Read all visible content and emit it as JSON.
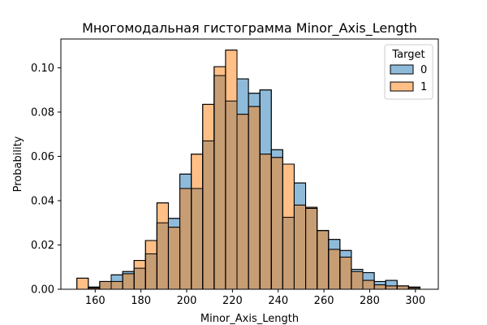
{
  "chart_data": {
    "type": "histogram",
    "title": "Многомодальная гистограмма Minor_Axis_Length",
    "xlabel": "Minor_Axis_Length",
    "ylabel": "Probability",
    "xlim": [
      145,
      310
    ],
    "ylim": [
      0,
      0.113
    ],
    "xticks": [
      160,
      180,
      200,
      220,
      240,
      260,
      280,
      300
    ],
    "yticks": [
      0.0,
      0.02,
      0.04,
      0.06,
      0.08,
      0.1
    ],
    "ytick_labels": [
      "0.00",
      "0.02",
      "0.04",
      "0.06",
      "0.08",
      "0.10"
    ],
    "bin_edges": [
      152,
      157,
      162,
      167,
      172,
      177,
      182,
      187,
      192,
      197,
      202,
      207,
      212,
      217,
      222,
      227,
      232,
      237,
      242,
      247,
      252,
      257,
      262,
      267,
      272,
      277,
      282,
      287,
      292,
      297,
      302,
      307
    ],
    "legend": {
      "title": "Target",
      "position": "upper-right"
    },
    "series": [
      {
        "name": "0",
        "color": "#1f77b4",
        "values": [
          0.0,
          0.001,
          0.0035,
          0.0065,
          0.008,
          0.0095,
          0.016,
          0.03,
          0.032,
          0.052,
          0.0455,
          0.067,
          0.0965,
          0.085,
          0.095,
          0.0885,
          0.09,
          0.063,
          0.0325,
          0.048,
          0.0365,
          0.0265,
          0.0225,
          0.0175,
          0.009,
          0.0075,
          0.0035,
          0.004,
          0.0015,
          0.0005,
          0.0
        ]
      },
      {
        "name": "1",
        "color": "#ff7f0e",
        "values": [
          0.005,
          0.0005,
          0.0035,
          0.0035,
          0.007,
          0.013,
          0.022,
          0.039,
          0.028,
          0.0455,
          0.061,
          0.0835,
          0.1005,
          0.108,
          0.079,
          0.0825,
          0.061,
          0.0595,
          0.0565,
          0.038,
          0.037,
          0.0265,
          0.018,
          0.0145,
          0.008,
          0.004,
          0.002,
          0.0015,
          0.0015,
          0.001,
          0.0
        ]
      }
    ]
  }
}
